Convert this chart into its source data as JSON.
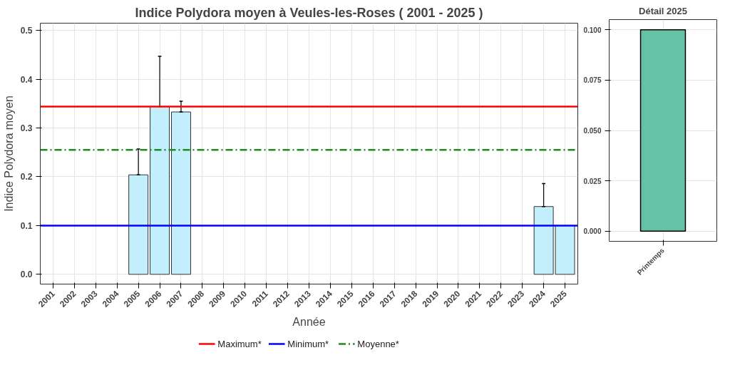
{
  "chart_data": [
    {
      "type": "bar",
      "title": "Indice Polydora moyen à Veules-les-Roses ( 2001 - 2025 )",
      "xlabel": "Année",
      "ylabel": "Indice Polydora moyen",
      "categories": [
        "2001",
        "2002",
        "2003",
        "2004",
        "2005",
        "2006",
        "2007",
        "2008",
        "2009",
        "2010",
        "2011",
        "2012",
        "2013",
        "2014",
        "2015",
        "2016",
        "2017",
        "2018",
        "2019",
        "2020",
        "2021",
        "2022",
        "2023",
        "2024",
        "2025"
      ],
      "values": [
        null,
        null,
        null,
        null,
        0.204,
        0.344,
        0.333,
        null,
        null,
        null,
        null,
        null,
        null,
        null,
        null,
        null,
        null,
        null,
        null,
        null,
        null,
        null,
        null,
        0.139,
        0.1
      ],
      "errors": [
        null,
        null,
        null,
        null,
        [
          0.204,
          0.257
        ],
        [
          0.344,
          0.447
        ],
        [
          0.333,
          0.355
        ],
        null,
        null,
        null,
        null,
        null,
        null,
        null,
        null,
        null,
        null,
        null,
        null,
        null,
        null,
        null,
        null,
        [
          0.139,
          0.186
        ],
        null
      ],
      "color": "#c3effd",
      "ylim": [
        -0.02,
        0.515
      ],
      "yticks": [
        {
          "value": 0,
          "label": "0.0"
        },
        0.1,
        0.2,
        0.3,
        0.4,
        0.5
      ],
      "ref_lines": [
        {
          "axis": "y",
          "value": 0.344,
          "label": "Maximum*",
          "color": "#ff0000",
          "line_style": "solid"
        },
        {
          "axis": "y",
          "value": 0.1,
          "label": "Minimum*",
          "color": "#0000ff",
          "line_style": "solid"
        },
        {
          "axis": "y",
          "value": 0.255,
          "label": "Moyenne*",
          "color": "#228b22",
          "line_style": "dashed"
        }
      ],
      "grid": true,
      "legend": "bottom"
    },
    {
      "type": "bar",
      "title": "Détail 2025",
      "categories": [
        "Printemps"
      ],
      "values": [
        0.1
      ],
      "color": "#66c2a5",
      "ylim": [
        -0.005,
        0.105
      ],
      "yticks": [
        {
          "value": 0,
          "label": "0.000"
        },
        {
          "value": 0.025,
          "label": "0.025"
        },
        {
          "value": 0.05,
          "label": "0.050"
        },
        {
          "value": 0.075,
          "label": "0.075"
        },
        {
          "value": 0.1,
          "label": "0.100"
        }
      ],
      "grid": true
    }
  ]
}
